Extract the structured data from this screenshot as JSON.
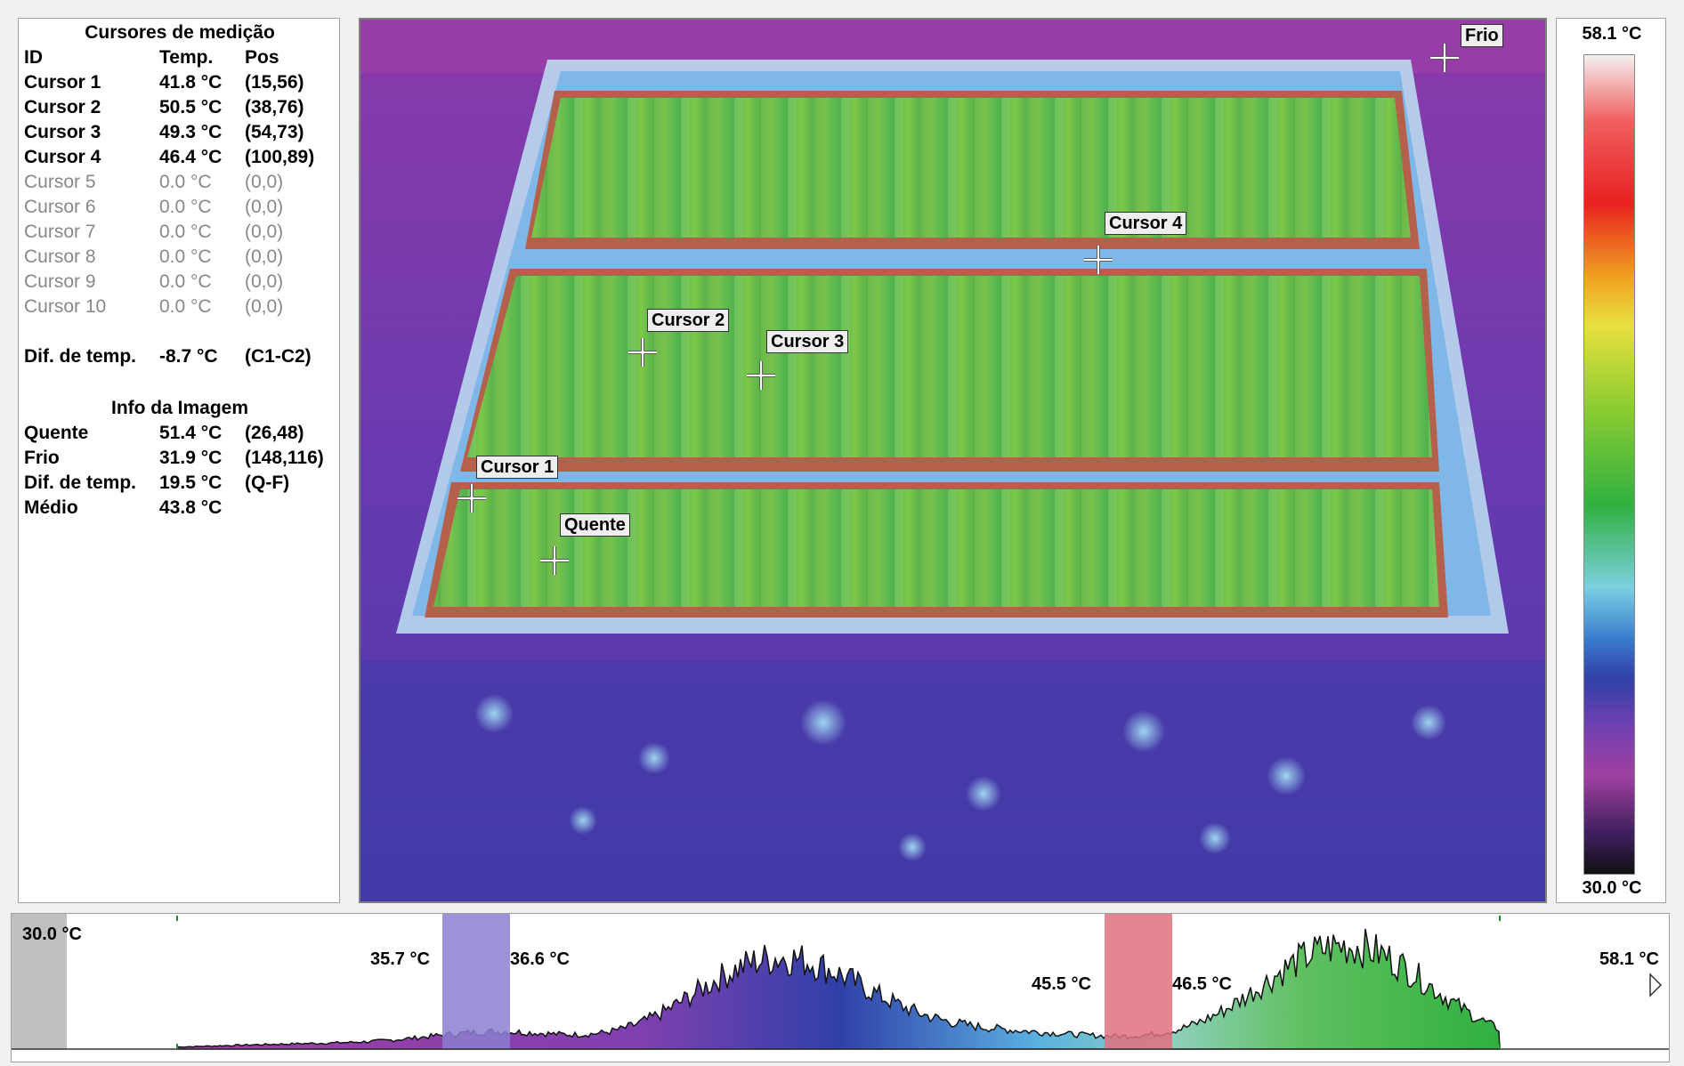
{
  "cursors_panel": {
    "title": "Cursores de medição",
    "headers": {
      "id": "ID",
      "temp": "Temp.",
      "pos": "Pos"
    },
    "rows": [
      {
        "id": "Cursor 1",
        "temp": "41.8 °C",
        "pos": "(15,56)",
        "active": true
      },
      {
        "id": "Cursor 2",
        "temp": "50.5 °C",
        "pos": "(38,76)",
        "active": true
      },
      {
        "id": "Cursor 3",
        "temp": "49.3 °C",
        "pos": "(54,73)",
        "active": true
      },
      {
        "id": "Cursor 4",
        "temp": "46.4 °C",
        "pos": "(100,89)",
        "active": true
      },
      {
        "id": "Cursor 5",
        "temp": "0.0 °C",
        "pos": "(0,0)",
        "active": false
      },
      {
        "id": "Cursor 6",
        "temp": "0.0 °C",
        "pos": "(0,0)",
        "active": false
      },
      {
        "id": "Cursor 7",
        "temp": "0.0 °C",
        "pos": "(0,0)",
        "active": false
      },
      {
        "id": "Cursor 8",
        "temp": "0.0 °C",
        "pos": "(0,0)",
        "active": false
      },
      {
        "id": "Cursor 9",
        "temp": "0.0 °C",
        "pos": "(0,0)",
        "active": false
      },
      {
        "id": "Cursor 10",
        "temp": "0.0 °C",
        "pos": "(0,0)",
        "active": false
      }
    ],
    "diff": {
      "label": "Dif. de temp.",
      "value": "-8.7 °C",
      "pair": "(C1-C2)"
    }
  },
  "image_info": {
    "title": "Info da Imagem",
    "rows": [
      {
        "label": "Quente",
        "value": "51.4 °C",
        "extra": "(26,48)"
      },
      {
        "label": "Frio",
        "value": "31.9 °C",
        "extra": "(148,116)"
      },
      {
        "label": "Dif. de temp.",
        "value": "19.5 °C",
        "extra": "(Q-F)"
      },
      {
        "label": "Médio",
        "value": "43.8 °C",
        "extra": ""
      }
    ]
  },
  "thermal_image": {
    "markers": {
      "frio": "Frio",
      "cursor4": "Cursor 4",
      "cursor2": "Cursor 2",
      "cursor3": "Cursor 3",
      "cursor1": "Cursor 1",
      "quente": "Quente"
    }
  },
  "scale": {
    "max": "58.1 °C",
    "min": "30.0 °C"
  },
  "histogram": {
    "min_label": "30.0 °C",
    "max_label": "58.1 °C",
    "iso1_low": "35.7 °C",
    "iso1_high": "36.6 °C",
    "iso2_low": "45.5 °C",
    "iso2_high": "46.5 °C"
  },
  "colors": {
    "isotherm": "#b5604a",
    "iso1_band": "#8a7fd0",
    "iso2_band": "#e07080",
    "min_band": "#c0c0c0"
  }
}
